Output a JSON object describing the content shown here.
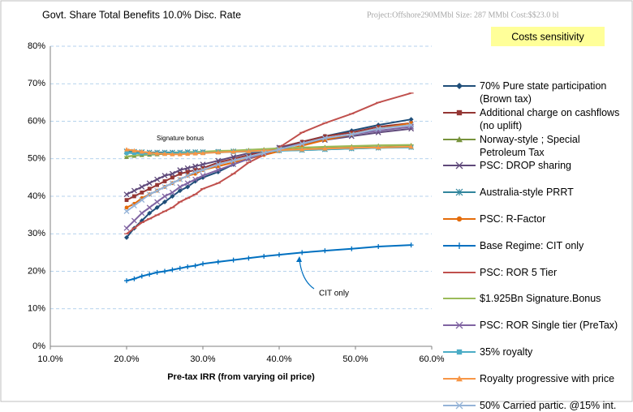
{
  "chart_data": {
    "type": "line",
    "title": "Govt. Share Total Benefits 10.0% Disc. Rate",
    "subtitle": "Project:Offshore290MMbl   Size: 287 MMbl Cost:$$23.0 bl",
    "box_label": "Costs sensitivity",
    "xlabel": "Pre-tax IRR (from varying oil price)",
    "annotations": [
      "Signature bonus",
      "CIT only"
    ],
    "xlim": [
      10,
      60
    ],
    "ylim": [
      0,
      80
    ],
    "xticks": [
      {
        "value": 10,
        "label": "10.0%"
      },
      {
        "value": 20,
        "label": "20.0%"
      },
      {
        "value": 30,
        "label": "30.0%"
      },
      {
        "value": 40,
        "label": "40.0%"
      },
      {
        "value": 50,
        "label": "50.0%"
      },
      {
        "value": 60,
        "label": "60.0%"
      }
    ],
    "yticks": [
      {
        "value": 0,
        "label": "0%"
      },
      {
        "value": 10,
        "label": "10%"
      },
      {
        "value": 20,
        "label": "20%"
      },
      {
        "value": 30,
        "label": "30%"
      },
      {
        "value": 40,
        "label": "40%"
      },
      {
        "value": 50,
        "label": "50%"
      },
      {
        "value": 60,
        "label": "60%"
      },
      {
        "value": 70,
        "label": "70%"
      },
      {
        "value": 80,
        "label": "80%"
      }
    ],
    "grid": true,
    "x": [
      20,
      21,
      22,
      23,
      24,
      25,
      26,
      27,
      28,
      29,
      30,
      32,
      34,
      36,
      38,
      40,
      43,
      46,
      49.5,
      53,
      57.3
    ],
    "series": [
      {
        "name": "70% Pure state participation (Brown tax)",
        "color": "#1f4e79",
        "marker": "diamond",
        "values": [
          29,
          31.5,
          33.5,
          35.5,
          37,
          38.5,
          40,
          41.5,
          42.5,
          44,
          45,
          46.5,
          48.5,
          50,
          51.5,
          53,
          54.5,
          56,
          57.5,
          59,
          60.5
        ]
      },
      {
        "name": "Additional charge on cashflows (no uplift)",
        "color": "#943634",
        "marker": "square",
        "values": [
          39,
          40,
          41,
          42,
          43,
          44,
          45,
          46,
          46.5,
          47,
          47.5,
          49,
          50,
          51,
          52,
          53,
          54.5,
          56,
          57,
          58.5,
          59.5
        ]
      },
      {
        "name": "Norway-style ; Special Petroleum Tax",
        "color": "#77933c",
        "marker": "triangle",
        "values": [
          50.5,
          50.8,
          51,
          51.1,
          51.2,
          51.3,
          51.4,
          51.5,
          51.6,
          51.7,
          51.8,
          52,
          52.1,
          52.3,
          52.5,
          52.7,
          52.9,
          53.1,
          53.3,
          53.5,
          53.6
        ]
      },
      {
        "name": "PSC: DROP sharing",
        "color": "#5f497a",
        "marker": "x",
        "values": [
          40.5,
          41.5,
          42.5,
          43.5,
          44.5,
          45.5,
          46,
          47,
          47.5,
          48,
          48.5,
          49.5,
          50.5,
          51.5,
          52,
          53,
          54,
          55,
          56,
          57,
          58
        ]
      },
      {
        "name": "Australia-style PRRT",
        "color": "#31859c",
        "marker": "star",
        "values": [
          52,
          51.9,
          51.8,
          51.7,
          51.7,
          51.7,
          51.7,
          51.7,
          51.8,
          51.8,
          51.8,
          51.9,
          52,
          52,
          52.1,
          52.2,
          52.3,
          52.5,
          52.7,
          52.9,
          53.1
        ]
      },
      {
        "name": "PSC: R-Factor",
        "color": "#e46c0a",
        "marker": "circle",
        "values": [
          37,
          38,
          39.5,
          40.5,
          41.5,
          42.5,
          43.5,
          44.5,
          45.5,
          46,
          47,
          48,
          49,
          50,
          51,
          52,
          53.5,
          55,
          56.5,
          58,
          59.5
        ]
      },
      {
        "name": "Base Regime: CIT only",
        "color": "#0070c0",
        "marker": "plus",
        "values": [
          17.5,
          18,
          18.7,
          19.2,
          19.7,
          20,
          20.4,
          20.8,
          21.2,
          21.5,
          22,
          22.5,
          23,
          23.5,
          24,
          24.4,
          25,
          25.5,
          26,
          26.6,
          27
        ]
      },
      {
        "name": "PSC: ROR 5 Tier",
        "color": "#c0504d",
        "marker": "dash",
        "values": [
          30,
          31.5,
          33,
          34,
          35,
          36,
          37,
          38.5,
          39.5,
          40.5,
          42,
          43.5,
          46,
          49,
          51,
          53,
          57,
          59.5,
          62,
          65,
          67.5
        ]
      },
      {
        "name": "$1.925Bn Signature.Bonus",
        "color": "#9bbb59",
        "marker": "dash",
        "values": [
          50.6,
          50.9,
          51.1,
          51.2,
          51.3,
          51.4,
          51.5,
          51.6,
          51.7,
          51.8,
          51.9,
          52.1,
          52.2,
          52.4,
          52.6,
          52.8,
          53,
          53.2,
          53.4,
          53.6,
          53.7
        ]
      },
      {
        "name": "PSC: ROR Single tier  (PreTax)",
        "color": "#8064a2",
        "marker": "x",
        "values": [
          31.5,
          33.5,
          35.5,
          37,
          38.5,
          40,
          41,
          42.5,
          43.5,
          44.5,
          45.5,
          47,
          48.5,
          50,
          51.5,
          52.5,
          54,
          55.5,
          56.5,
          57.5,
          58.5
        ]
      },
      {
        "name": "35% royalty",
        "color": "#4bacc6",
        "marker": "square",
        "values": [
          51.5,
          51.5,
          51.4,
          51.4,
          51.4,
          51.4,
          51.4,
          51.5,
          51.5,
          51.6,
          51.6,
          51.7,
          51.8,
          51.9,
          52,
          52.1,
          52.3,
          52.5,
          52.7,
          52.9,
          53
        ]
      },
      {
        "name": "Royalty progressive with price",
        "color": "#f79646",
        "marker": "triangle",
        "values": [
          52.5,
          52.2,
          51.9,
          51.6,
          51.4,
          51.3,
          51.2,
          51.2,
          51.3,
          51.4,
          51.5,
          51.7,
          51.9,
          52,
          52.2,
          52.3,
          52.5,
          52.7,
          52.9,
          53,
          53.2
        ]
      },
      {
        "name": "50% Carried partic. @15% int.",
        "color": "#95b3d7",
        "marker": "x",
        "values": [
          36,
          37.5,
          39,
          40.5,
          41.5,
          42.5,
          43.5,
          44.5,
          45.5,
          46.5,
          47,
          48.5,
          49.5,
          50.5,
          51.5,
          52.5,
          54,
          55.5,
          56.5,
          58,
          59
        ]
      }
    ]
  }
}
